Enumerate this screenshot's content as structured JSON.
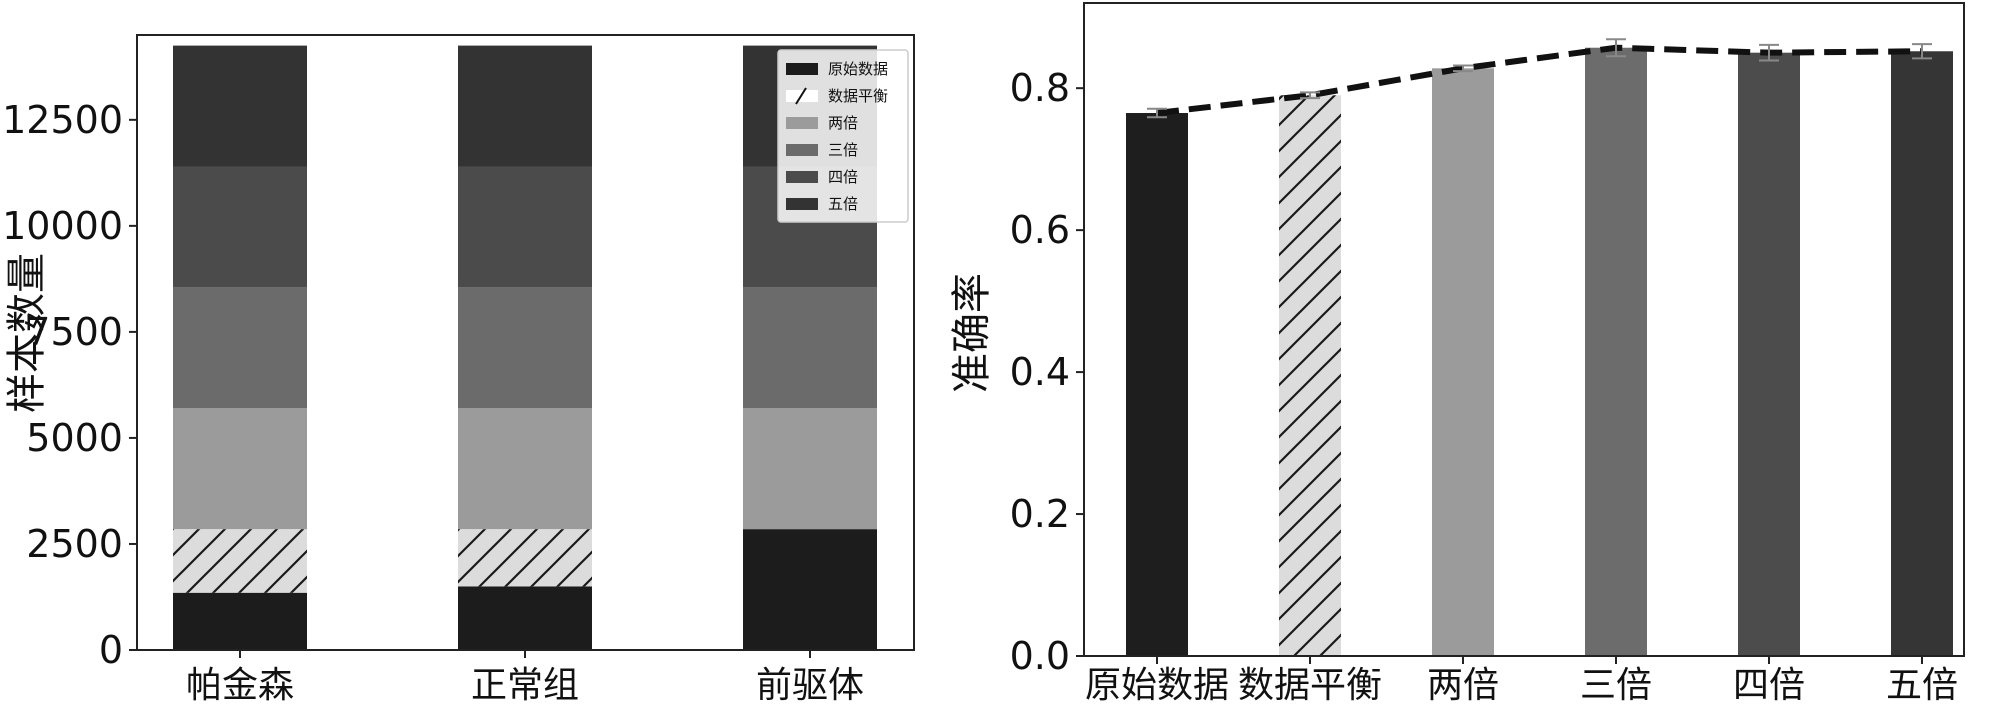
{
  "chart_data": [
    {
      "type": "bar",
      "stacked": true,
      "ylabel": "样本数量",
      "xlabel": "",
      "ylim": [
        0,
        14500
      ],
      "yticks": [
        0,
        2500,
        5000,
        7500,
        10000,
        12500
      ],
      "categories": [
        "帕金森",
        "正常组",
        "前驱体"
      ],
      "legend_position": "top-right",
      "series": [
        {
          "name": "原始数据",
          "values": [
            1350,
            1500,
            2850
          ],
          "color": "#1c1c1c",
          "hatch": false
        },
        {
          "name": "数据平衡",
          "values": [
            1500,
            1350,
            0
          ],
          "color": "#dddddd",
          "hatch": true
        },
        {
          "name": "两倍",
          "values": [
            2850,
            2850,
            2850
          ],
          "color": "#9b9b9b",
          "hatch": false
        },
        {
          "name": "三倍",
          "values": [
            2850,
            2850,
            2850
          ],
          "color": "#6b6b6b",
          "hatch": false
        },
        {
          "name": "四倍",
          "values": [
            2850,
            2850,
            2850
          ],
          "color": "#4b4b4b",
          "hatch": false
        },
        {
          "name": "五倍",
          "values": [
            2850,
            2850,
            2850
          ],
          "color": "#333333",
          "hatch": false
        }
      ]
    },
    {
      "type": "bar",
      "ylabel": "准确率",
      "xlabel": "",
      "ylim": [
        0,
        0.92
      ],
      "yticks": [
        0.0,
        0.2,
        0.4,
        0.6,
        0.8
      ],
      "categories": [
        "原始数据",
        "数据平衡",
        "两倍",
        "三倍",
        "四倍",
        "五倍"
      ],
      "values": [
        0.765,
        0.79,
        0.828,
        0.857,
        0.85,
        0.852
      ],
      "errors": [
        0.006,
        0.004,
        0.004,
        0.012,
        0.011,
        0.01
      ],
      "colors": [
        "#1e1e1e",
        "#dcdcdc",
        "#9b9b9b",
        "#6c6c6c",
        "#4c4c4c",
        "#353535"
      ],
      "hatch": [
        false,
        true,
        false,
        false,
        false,
        false
      ],
      "trend_line": "dashed",
      "grid": false
    }
  ]
}
